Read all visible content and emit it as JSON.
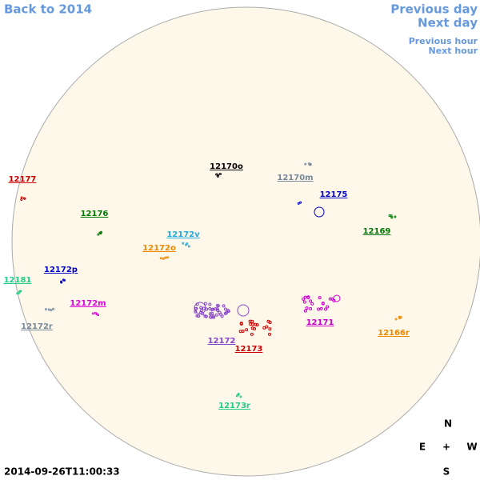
{
  "nav": {
    "back": "Back to 2014",
    "previous_day": "Previous day",
    "next_day": "Next day",
    "previous_hour": "Previous hour",
    "next_hour": "Next hour"
  },
  "regions": [
    {
      "label": "12177",
      "color": "#cc0000"
    },
    {
      "label": "12176",
      "color": "#007700"
    },
    {
      "label": "12172v",
      "color": "#22aadd"
    },
    {
      "label": "12172o",
      "color": "#ee8800"
    },
    {
      "label": "12172p",
      "color": "#0000cc"
    },
    {
      "label": "12181",
      "color": "#22cc88"
    },
    {
      "label": "12172m",
      "color": "#dd00dd"
    },
    {
      "label": "12172r",
      "color": "#778899"
    },
    {
      "label": "12170o",
      "color": "#000000"
    },
    {
      "label": "12170m",
      "color": "#778899"
    },
    {
      "label": "12175",
      "color": "#0000cc"
    },
    {
      "label": "12169",
      "color": "#007700"
    },
    {
      "label": "12171",
      "color": "#cc00cc"
    },
    {
      "label": "12166r",
      "color": "#ee8800"
    },
    {
      "label": "12172",
      "color": "#8844cc"
    },
    {
      "label": "12173",
      "color": "#cc0000"
    },
    {
      "label": "12173r",
      "color": "#22cc88"
    }
  ],
  "compass": {
    "north": "N",
    "east": "E",
    "center": "+",
    "west": "W",
    "south": "S"
  },
  "timestamp": "2014-09-26T11:00:33"
}
